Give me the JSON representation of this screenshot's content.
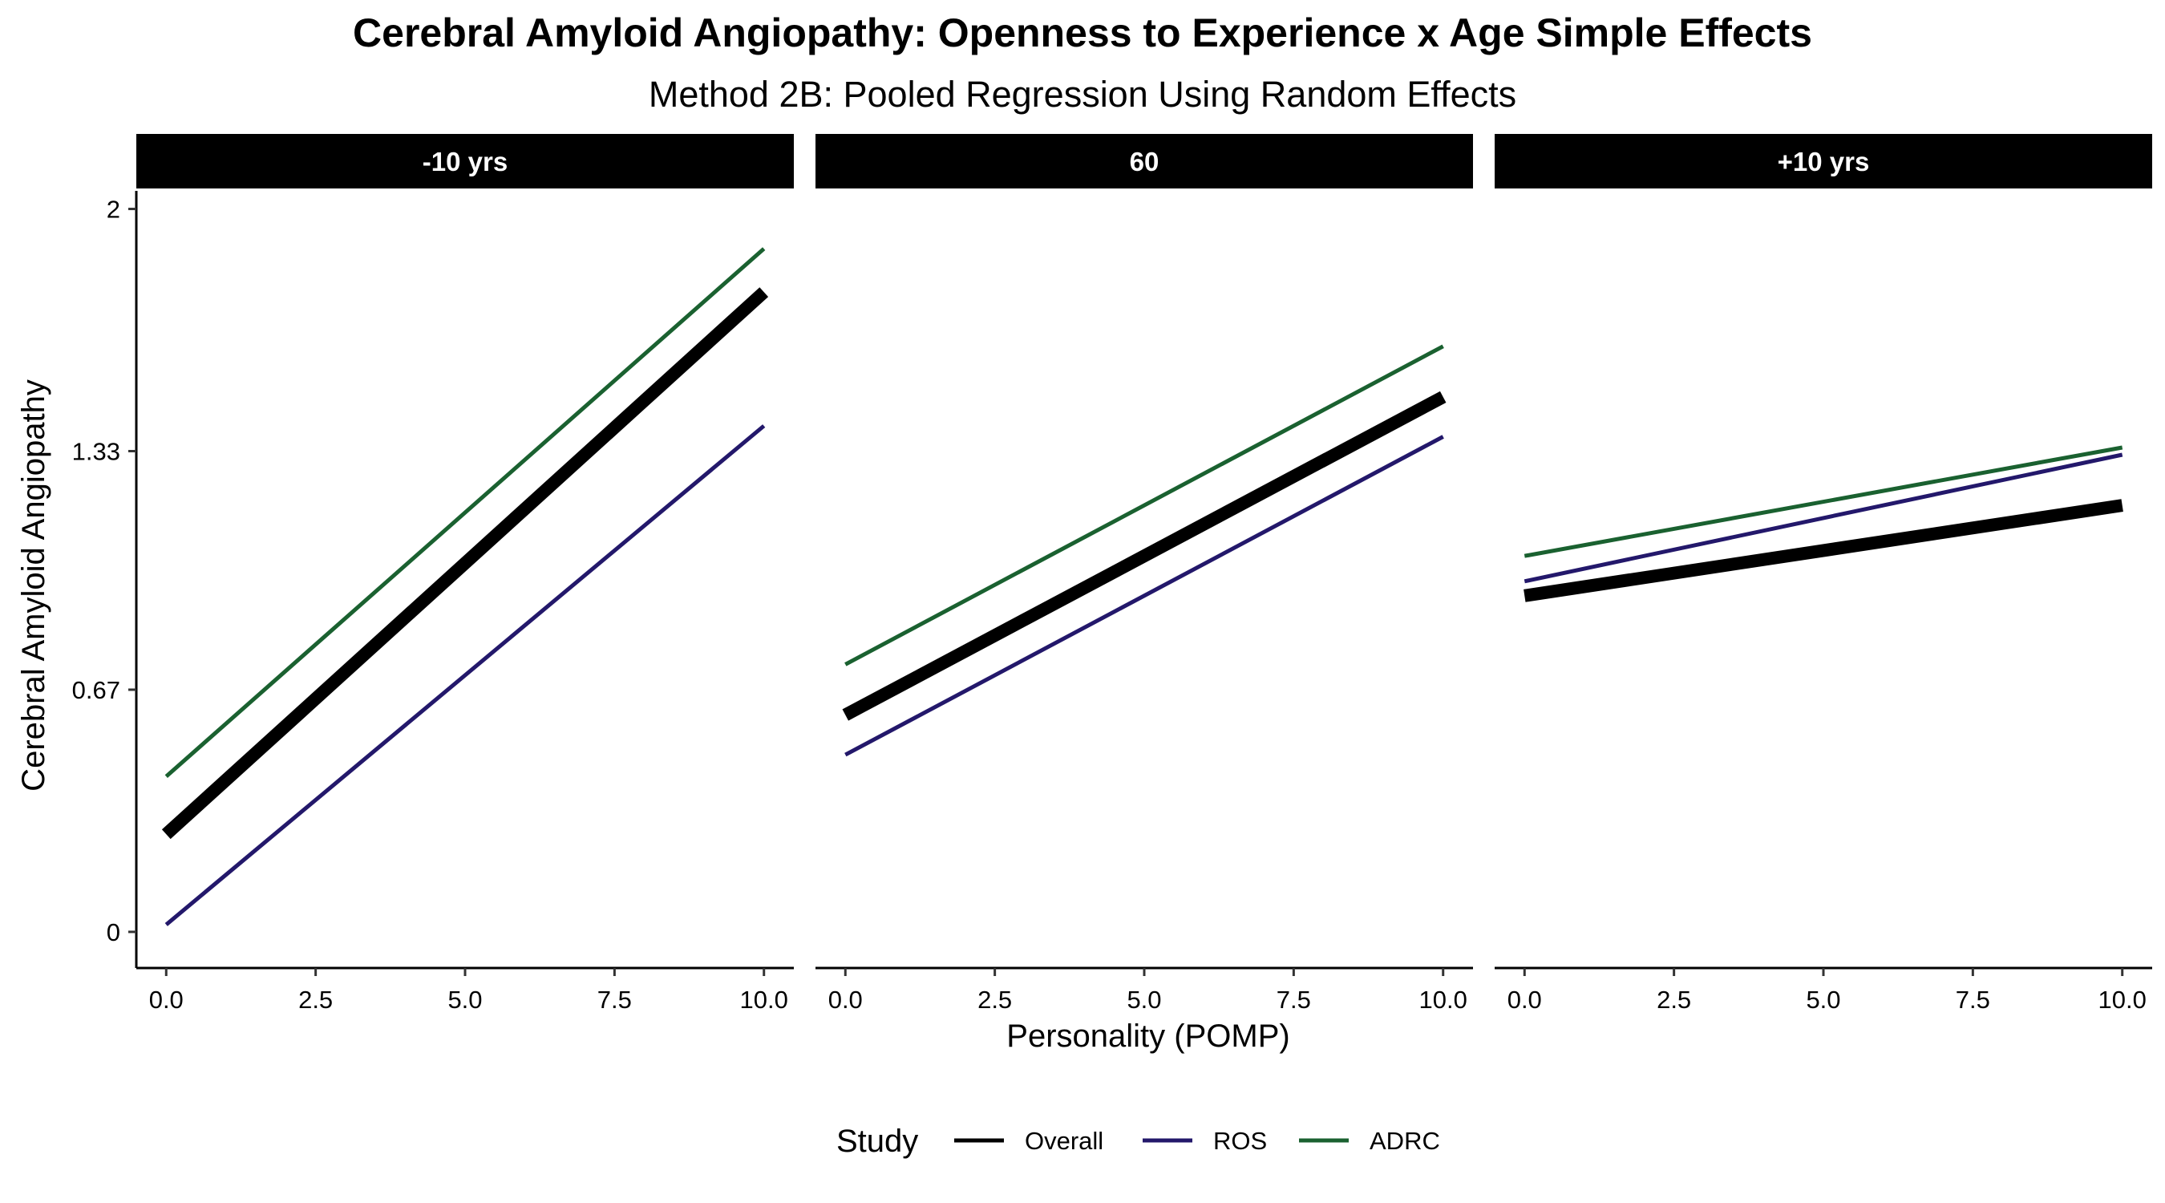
{
  "chart_data": {
    "type": "line",
    "title": "Cerebral Amyloid Angiopathy: Openness to Experience x Age Simple Effects",
    "subtitle": "Method 2B: Pooled Regression Using Random Effects",
    "xlabel": "Personality (POMP)",
    "ylabel": "Cerebral Amyloid Angiopathy",
    "xlim": [
      -0.5,
      10.5
    ],
    "ylim": [
      -0.1,
      2.05
    ],
    "x_ticks": [
      0,
      2.5,
      5,
      7.5,
      10
    ],
    "x_tick_labels": [
      "0.0",
      "2.5",
      "5.0",
      "7.5",
      "10.0"
    ],
    "y_ticks": [
      0,
      0.67,
      1.33,
      2
    ],
    "y_tick_labels": [
      "0",
      "0.67",
      "1.33",
      "2"
    ],
    "grid": false,
    "legend": {
      "title": "Study",
      "position": "bottom",
      "entries": [
        {
          "name": "Overall",
          "color": "#000000"
        },
        {
          "name": "ROS",
          "color": "#23186b"
        },
        {
          "name": "ADRC",
          "color": "#1a6130"
        }
      ]
    },
    "panels": [
      {
        "label": "-10 yrs",
        "series": [
          {
            "name": "Overall",
            "x": [
              0,
              10
            ],
            "y": [
              0.27,
              1.77
            ]
          },
          {
            "name": "ROS",
            "x": [
              0,
              10
            ],
            "y": [
              0.02,
              1.4
            ]
          },
          {
            "name": "ADRC",
            "x": [
              0,
              10
            ],
            "y": [
              0.43,
              1.89
            ]
          }
        ]
      },
      {
        "label": "60",
        "series": [
          {
            "name": "Overall",
            "x": [
              0,
              10
            ],
            "y": [
              0.6,
              1.48
            ]
          },
          {
            "name": "ROS",
            "x": [
              0,
              10
            ],
            "y": [
              0.49,
              1.37
            ]
          },
          {
            "name": "ADRC",
            "x": [
              0,
              10
            ],
            "y": [
              0.74,
              1.62
            ]
          }
        ]
      },
      {
        "label": "+10 yrs",
        "series": [
          {
            "name": "Overall",
            "x": [
              0,
              10
            ],
            "y": [
              0.93,
              1.18
            ]
          },
          {
            "name": "ROS",
            "x": [
              0,
              10
            ],
            "y": [
              0.97,
              1.32
            ]
          },
          {
            "name": "ADRC",
            "x": [
              0,
              10
            ],
            "y": [
              1.04,
              1.34
            ]
          }
        ]
      }
    ]
  }
}
